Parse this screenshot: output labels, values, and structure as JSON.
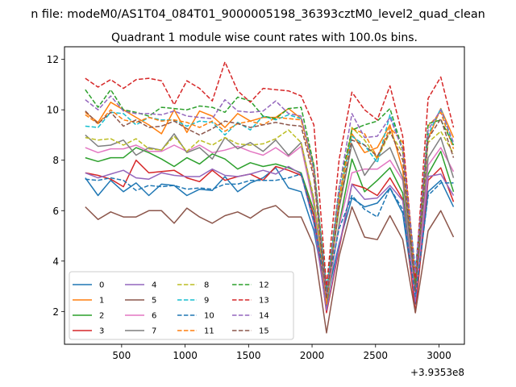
{
  "chart_data": {
    "type": "line",
    "suptitle": "n file: modeM0/AS1T04_084T01_9000005198_36393cztM0_level2_quad_clean",
    "title": "Quadrant 1 module wise count rates with 100.0s bins.",
    "xlabel": "",
    "ylabel": "",
    "offset_text": "+3.9353e8",
    "xlim": [
      50,
      3200
    ],
    "ylim": [
      0.7,
      12.5
    ],
    "xticks": [
      500,
      1000,
      1500,
      2000,
      2500,
      3000
    ],
    "yticks": [
      2,
      4,
      6,
      8,
      10,
      12
    ],
    "grid": false,
    "legend": {
      "placement": "lower-left",
      "columns": 4
    },
    "x": [
      214,
      314,
      414,
      514,
      614,
      714,
      814,
      914,
      1014,
      1114,
      1214,
      1314,
      1414,
      1514,
      1614,
      1714,
      1814,
      1914,
      2014,
      2114,
      2214,
      2314,
      2414,
      2514,
      2614,
      2714,
      2814,
      2914,
      3014,
      3114
    ],
    "series": [
      {
        "name": "0",
        "color": "#1f77b4",
        "dashed": false,
        "values": [
          7.3,
          6.6,
          7.2,
          6.75,
          7.1,
          6.6,
          7.05,
          7.0,
          6.6,
          6.85,
          6.8,
          7.35,
          6.75,
          7.1,
          7.3,
          7.7,
          6.9,
          6.75,
          5.2,
          2.5,
          4.7,
          6.5,
          6.15,
          6.3,
          6.9,
          5.9,
          2.3,
          6.75,
          7.2,
          6.15
        ]
      },
      {
        "name": "1",
        "color": "#ff7f0e",
        "dashed": false,
        "values": [
          9.9,
          9.5,
          10.3,
          10.0,
          9.7,
          9.4,
          9.05,
          10.0,
          9.1,
          9.95,
          9.75,
          9.3,
          9.85,
          9.55,
          9.7,
          9.7,
          10.05,
          9.65,
          7.8,
          2.6,
          6.6,
          9.05,
          8.3,
          8.5,
          9.4,
          7.6,
          3.1,
          8.85,
          10.05,
          8.9
        ]
      },
      {
        "name": "2",
        "color": "#2ca02c",
        "dashed": false,
        "values": [
          8.1,
          7.95,
          8.1,
          8.1,
          8.5,
          8.3,
          8.05,
          7.75,
          8.1,
          7.85,
          8.25,
          8.05,
          7.65,
          7.9,
          7.75,
          7.85,
          7.7,
          7.5,
          6.0,
          2.2,
          5.5,
          8.05,
          6.75,
          7.2,
          7.7,
          6.7,
          2.6,
          7.45,
          8.35,
          6.75
        ]
      },
      {
        "name": "3",
        "color": "#d62728",
        "dashed": false,
        "values": [
          7.5,
          7.4,
          7.25,
          6.95,
          8.0,
          7.5,
          7.55,
          7.6,
          7.3,
          7.15,
          7.6,
          7.2,
          7.35,
          7.45,
          7.2,
          7.75,
          7.6,
          7.4,
          5.8,
          1.95,
          4.5,
          7.05,
          6.9,
          6.6,
          7.3,
          6.45,
          1.95,
          7.2,
          7.7,
          6.35
        ]
      },
      {
        "name": "4",
        "color": "#9467bd",
        "dashed": false,
        "values": [
          7.5,
          7.3,
          7.45,
          7.6,
          7.3,
          7.25,
          7.5,
          7.4,
          7.35,
          7.35,
          7.65,
          7.4,
          7.35,
          7.45,
          7.6,
          7.45,
          7.75,
          7.45,
          5.5,
          2.05,
          4.6,
          7.05,
          6.45,
          6.5,
          7.0,
          6.4,
          2.4,
          7.35,
          7.45,
          6.6
        ]
      },
      {
        "name": "5",
        "color": "#8c564b",
        "dashed": false,
        "values": [
          6.15,
          5.65,
          5.95,
          5.75,
          5.75,
          6.0,
          6.0,
          5.5,
          6.1,
          5.75,
          5.5,
          5.8,
          5.95,
          5.7,
          6.05,
          6.2,
          5.75,
          5.75,
          4.6,
          1.15,
          4.2,
          6.15,
          4.95,
          4.85,
          5.8,
          4.85,
          1.95,
          5.2,
          6.0,
          4.95
        ]
      },
      {
        "name": "6",
        "color": "#e377c2",
        "dashed": false,
        "values": [
          8.5,
          8.3,
          8.45,
          8.45,
          8.6,
          8.35,
          8.35,
          8.6,
          8.35,
          8.6,
          8.3,
          8.4,
          8.55,
          8.35,
          8.2,
          8.5,
          8.15,
          8.55,
          6.2,
          2.4,
          5.4,
          7.5,
          7.65,
          7.65,
          8.0,
          7.2,
          2.6,
          7.8,
          8.5,
          7.55
        ]
      },
      {
        "name": "7",
        "color": "#7f7f7f",
        "dashed": false,
        "values": [
          9.0,
          8.55,
          8.6,
          8.8,
          8.2,
          8.5,
          8.4,
          9.05,
          8.3,
          8.5,
          8.05,
          8.9,
          8.45,
          8.7,
          8.35,
          8.8,
          8.2,
          8.7,
          6.4,
          2.5,
          6.1,
          8.65,
          7.4,
          8.1,
          8.5,
          7.3,
          2.9,
          8.1,
          8.9,
          7.3
        ]
      },
      {
        "name": "8",
        "color": "#bcbd22",
        "dashed": true,
        "values": [
          8.9,
          8.8,
          8.85,
          8.6,
          8.85,
          8.45,
          8.4,
          8.95,
          8.35,
          8.8,
          8.6,
          8.9,
          8.65,
          8.6,
          8.65,
          8.85,
          9.2,
          8.7,
          6.5,
          2.7,
          6.2,
          9.3,
          8.8,
          8.05,
          9.1,
          8.3,
          3.2,
          8.7,
          9.15,
          8.25
        ]
      },
      {
        "name": "9",
        "color": "#17becf",
        "dashed": true,
        "values": [
          9.35,
          9.3,
          9.9,
          9.85,
          9.4,
          9.7,
          9.6,
          9.6,
          9.35,
          9.55,
          9.5,
          9.0,
          9.5,
          9.2,
          9.75,
          9.6,
          9.8,
          9.65,
          7.7,
          2.9,
          6.65,
          8.95,
          8.6,
          7.9,
          9.8,
          8.45,
          3.7,
          9.0,
          10.05,
          8.6
        ]
      },
      {
        "name": "10",
        "color": "#1f77b4",
        "dashed": true,
        "values": [
          7.25,
          7.2,
          7.3,
          7.2,
          6.8,
          7.0,
          6.95,
          7.0,
          6.85,
          6.9,
          6.85,
          7.05,
          7.05,
          7.2,
          7.2,
          7.2,
          7.3,
          7.45,
          5.6,
          2.8,
          5.3,
          6.6,
          6.05,
          5.75,
          6.9,
          6.05,
          2.6,
          6.6,
          7.1,
          7.1
        ]
      },
      {
        "name": "11",
        "color": "#ff7f0e",
        "dashed": true,
        "values": [
          9.8,
          9.45,
          10.0,
          9.6,
          9.5,
          9.7,
          9.55,
          9.6,
          9.5,
          9.3,
          9.55,
          9.15,
          9.45,
          9.55,
          9.4,
          9.7,
          9.65,
          9.6,
          7.5,
          2.3,
          6.5,
          9.25,
          9.05,
          8.1,
          9.3,
          8.7,
          3.4,
          9.35,
          9.9,
          8.45
        ]
      },
      {
        "name": "12",
        "color": "#2ca02c",
        "dashed": true,
        "values": [
          10.8,
          10.1,
          10.8,
          10.0,
          9.9,
          9.75,
          10.1,
          10.05,
          10.0,
          10.15,
          10.1,
          9.9,
          10.5,
          10.35,
          9.75,
          9.65,
          10.05,
          10.1,
          7.8,
          2.85,
          6.95,
          9.2,
          9.4,
          9.55,
          10.05,
          8.4,
          3.1,
          9.45,
          9.6,
          8.6
        ]
      },
      {
        "name": "13",
        "color": "#d62728",
        "dashed": true,
        "values": [
          11.25,
          10.9,
          11.2,
          10.85,
          11.2,
          11.25,
          11.15,
          10.2,
          11.15,
          10.85,
          10.35,
          11.9,
          10.75,
          10.3,
          10.85,
          10.8,
          10.75,
          10.55,
          9.4,
          3.0,
          8.05,
          10.7,
          10.0,
          9.6,
          10.95,
          8.95,
          3.3,
          10.45,
          11.3,
          9.3
        ]
      },
      {
        "name": "14",
        "color": "#9467bd",
        "dashed": true,
        "values": [
          10.4,
          10.0,
          10.55,
          9.95,
          9.85,
          9.85,
          9.8,
          9.95,
          9.75,
          9.7,
          9.65,
          10.4,
          9.95,
          9.9,
          9.95,
          10.35,
          9.85,
          9.75,
          7.6,
          2.6,
          6.9,
          9.85,
          8.9,
          8.95,
          9.7,
          8.4,
          3.5,
          9.2,
          10.0,
          8.7
        ]
      },
      {
        "name": "15",
        "color": "#8c564b",
        "dashed": true,
        "values": [
          9.95,
          9.45,
          9.9,
          9.35,
          9.6,
          9.3,
          9.35,
          9.55,
          9.25,
          9.0,
          9.25,
          9.55,
          9.45,
          9.3,
          9.4,
          9.5,
          9.4,
          9.35,
          7.3,
          2.5,
          6.2,
          8.8,
          8.6,
          8.15,
          9.15,
          8.0,
          2.8,
          8.85,
          9.65,
          8.1
        ]
      }
    ]
  }
}
